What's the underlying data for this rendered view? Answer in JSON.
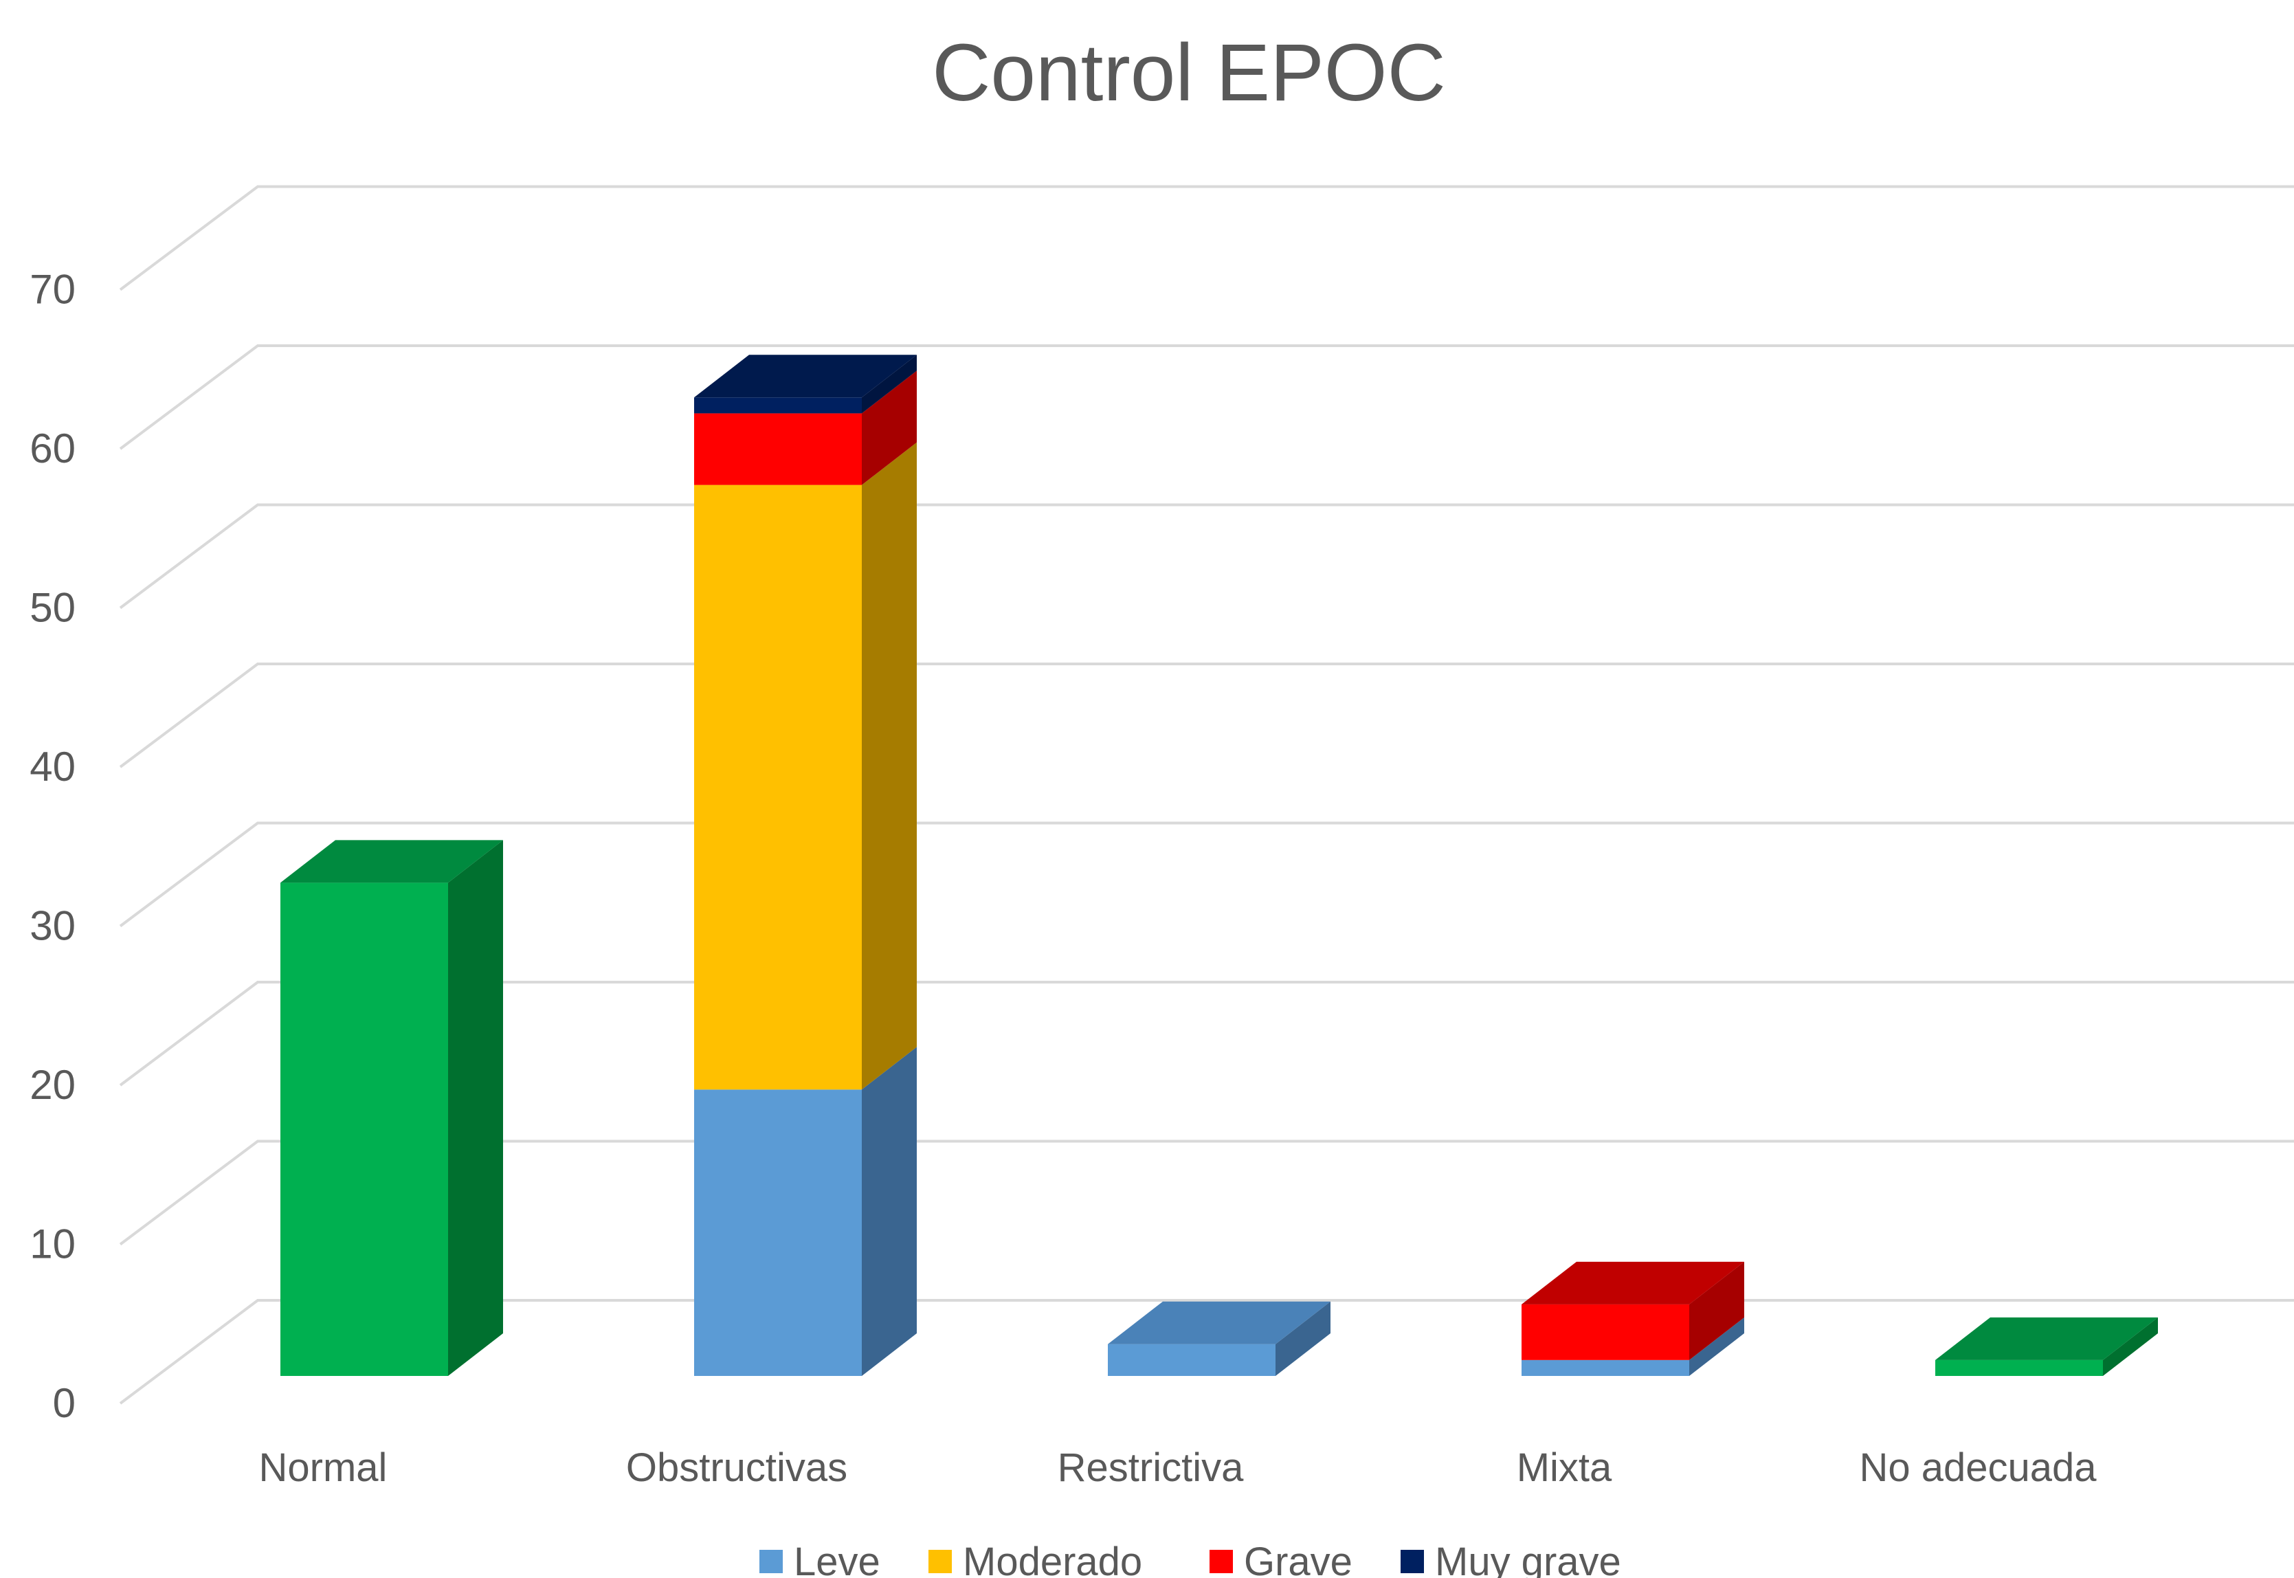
{
  "chart_data": {
    "type": "bar",
    "stacked": true,
    "three_d": true,
    "title": "Control EPOC",
    "xlabel": "",
    "ylabel": "",
    "ylim": [
      0,
      70
    ],
    "yticks": [
      0,
      10,
      20,
      30,
      40,
      50,
      60,
      70
    ],
    "grid": true,
    "legend_position": "bottom",
    "categories": [
      "Normal",
      "Obstructivas",
      "Restrictiva",
      "Mixta",
      "No adecuada"
    ],
    "series": [
      {
        "name": "Leve",
        "color": "#5b9bd5",
        "side_color": "#3a6590",
        "top_color": "#4a82b8",
        "values": [
          0,
          18,
          2,
          1,
          0
        ]
      },
      {
        "name": "Moderado",
        "color": "#ffc000",
        "side_color": "#a67c00",
        "top_color": "#d9a300",
        "values": [
          0,
          38,
          0,
          0,
          0
        ]
      },
      {
        "name": "Grave",
        "color": "#ff0000",
        "side_color": "#a60000",
        "top_color": "#c00000",
        "values": [
          0,
          4.5,
          0,
          3.5,
          0
        ]
      },
      {
        "name": "Muy grave",
        "color": "#002060",
        "side_color": "#001540",
        "top_color": "#001a4d",
        "values": [
          0,
          1,
          0,
          0,
          0
        ]
      },
      {
        "name": "",
        "color": "#00b050",
        "side_color": "#00702f",
        "top_color": "#008a3f",
        "values": [
          31,
          0,
          0,
          0,
          1
        ]
      }
    ]
  }
}
